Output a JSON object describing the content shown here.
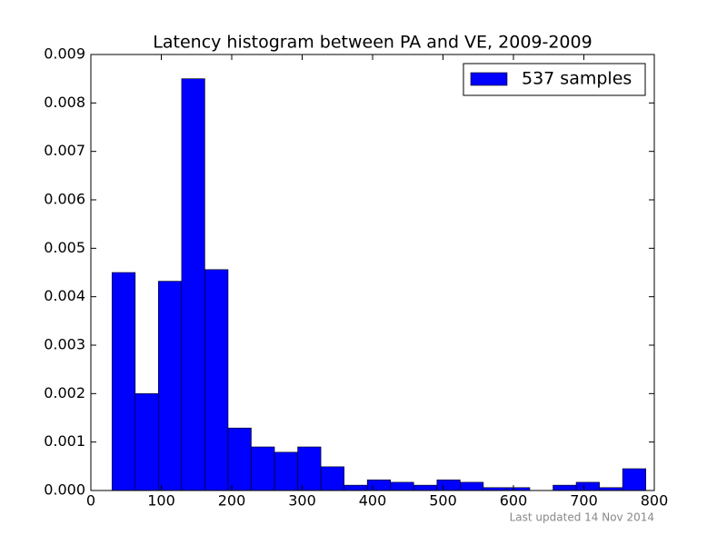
{
  "chart_data": {
    "type": "histogram",
    "title": "Latency histogram between PA and VE, 2009-2009",
    "footnote": "Last updated 14 Nov 2014",
    "bins": [
      30,
      63,
      95.9,
      128.9,
      161.8,
      194.8,
      227.7,
      260.7,
      293.7,
      326.6,
      359.6,
      392.5,
      425.5,
      458.4,
      491.4,
      524.3,
      557.3,
      590.3,
      623.2,
      656.2,
      689.1,
      722.1,
      755,
      788
    ],
    "series": [
      {
        "name": "537 samples",
        "color": "#0000ff",
        "values": [
          0.0045,
          0.002,
          0.00432,
          0.0085,
          0.00456,
          0.00129,
          0.0009,
          0.00079,
          0.0009,
          0.00049,
          0.00011,
          0.00022,
          0.00017,
          0.00011,
          0.00022,
          0.00017,
          6e-05,
          6e-05,
          0,
          0.00011,
          0.00017,
          6e-05,
          0.00045
        ]
      }
    ],
    "xlim": [
      0,
      800
    ],
    "xticks": [
      0,
      100,
      200,
      300,
      400,
      500,
      600,
      700,
      800
    ],
    "ylim": [
      0,
      0.009
    ],
    "yticks": [
      {
        "value": 0,
        "label": "0.000"
      },
      {
        "value": 0.001,
        "label": "0.001"
      },
      {
        "value": 0.002,
        "label": "0.002"
      },
      {
        "value": 0.003,
        "label": "0.003"
      },
      {
        "value": 0.004,
        "label": "0.004"
      },
      {
        "value": 0.005,
        "label": "0.005"
      },
      {
        "value": 0.006,
        "label": "0.006"
      },
      {
        "value": 0.007,
        "label": "0.007"
      },
      {
        "value": 0.008,
        "label": "0.008"
      },
      {
        "value": 0.009,
        "label": "0.009"
      }
    ],
    "legend": "upper right",
    "grid": false
  }
}
